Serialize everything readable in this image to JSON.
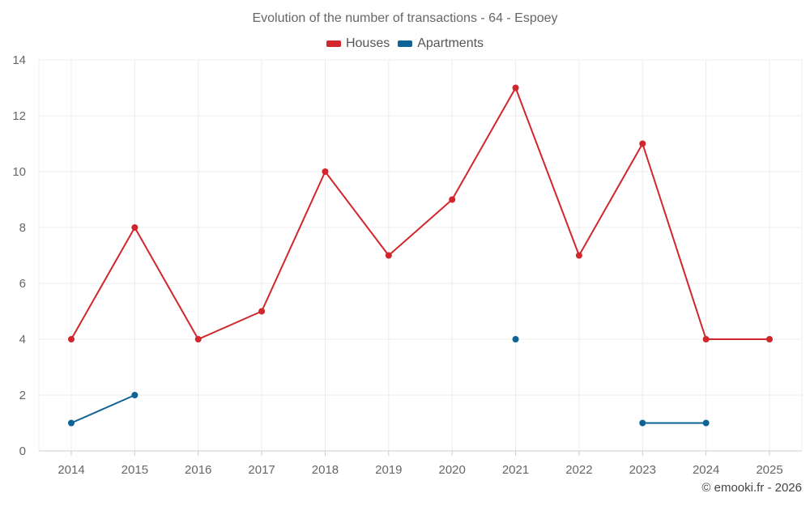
{
  "chart_data": {
    "type": "line",
    "title": "Evolution of the number of transactions - 64 - Espoey",
    "categories": [
      "2014",
      "2015",
      "2016",
      "2017",
      "2018",
      "2019",
      "2020",
      "2021",
      "2022",
      "2023",
      "2024",
      "2025"
    ],
    "ylim": [
      0,
      14
    ],
    "yticks": [
      0,
      2,
      4,
      6,
      8,
      10,
      12,
      14
    ],
    "grid": true,
    "legend_position": "top",
    "series": [
      {
        "name": "Houses",
        "color": "#d1262b",
        "values": [
          4,
          8,
          4,
          5,
          10,
          7,
          9,
          13,
          7,
          11,
          4,
          4
        ]
      },
      {
        "name": "Apartments",
        "color": "#0d6396",
        "values": [
          1,
          2,
          null,
          null,
          null,
          null,
          null,
          4,
          null,
          1,
          1,
          null
        ]
      }
    ],
    "xlabel": "",
    "ylabel": ""
  },
  "credit": "© emooki.fr - 2026"
}
